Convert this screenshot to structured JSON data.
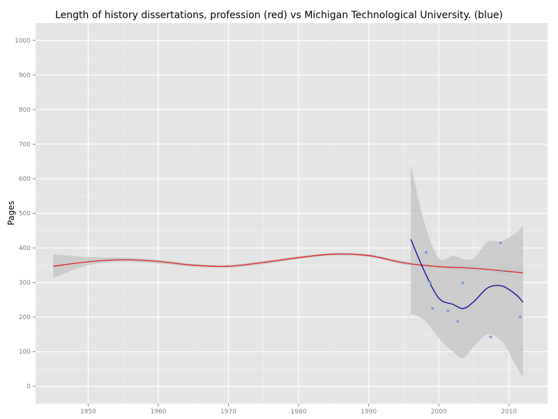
{
  "chart_data": {
    "type": "scatter",
    "title": "Length of history dissertations, profession (red) vs Michigan Technological University. (blue)",
    "xlabel": "",
    "ylabel": "Pages",
    "xlim": [
      1942.5,
      2015.5
    ],
    "ylim": [
      -50,
      1050
    ],
    "x_ticks": [
      1950,
      1960,
      1970,
      1980,
      1990,
      2000,
      2010
    ],
    "y_ticks": [
      0,
      100,
      200,
      300,
      400,
      500,
      600,
      700,
      800,
      900,
      1000
    ],
    "grid": true,
    "colors": {
      "panel_bg": "#e5e5e5",
      "grid_major": "#ffffff",
      "grid_minor": "#f2f2f2",
      "ribbon": "#c8c8c8",
      "profession_line": "#e41a1c",
      "mtu_line": "#00009c",
      "mtu_points": "#7f9fd8"
    },
    "series": [
      {
        "key": "profession-smooth",
        "x": [
          1945,
          1950,
          1955,
          1960,
          1965,
          1970,
          1975,
          1980,
          1985,
          1990,
          1995,
          2000,
          2005,
          2010,
          2012
        ],
        "y": [
          347,
          360,
          366,
          361,
          350,
          347,
          358,
          372,
          382,
          378,
          357,
          346,
          341,
          332,
          328
        ],
        "ci_lower": [
          313,
          350,
          360,
          355,
          346,
          343,
          353,
          368,
          378,
          374,
          352,
          340,
          333,
          318,
          306
        ],
        "ci_upper": [
          382,
          374,
          372,
          366,
          354,
          351,
          363,
          376,
          386,
          382,
          362,
          352,
          349,
          344,
          350
        ]
      },
      {
        "key": "mtu-smooth",
        "x": [
          1996,
          1998,
          2000,
          2002,
          2003.5,
          2005,
          2007,
          2009,
          2011,
          2012
        ],
        "y": [
          425,
          330,
          255,
          237,
          225,
          245,
          285,
          290,
          265,
          243
        ],
        "ci_lower": [
          210,
          190,
          140,
          100,
          82,
          115,
          150,
          130,
          60,
          25
        ],
        "ci_upper": [
          640,
          470,
          370,
          378,
          368,
          370,
          418,
          420,
          443,
          465
        ]
      },
      {
        "key": "mtu-points",
        "x": [
          1998.2,
          1998.8,
          1999.1,
          2001.3,
          2002.7,
          2003.4,
          2007.4,
          2008.8,
          2009.0,
          2011.6
        ],
        "y": [
          387,
          300,
          225,
          218,
          188,
          299,
          143,
          415,
          333,
          201
        ]
      }
    ]
  }
}
